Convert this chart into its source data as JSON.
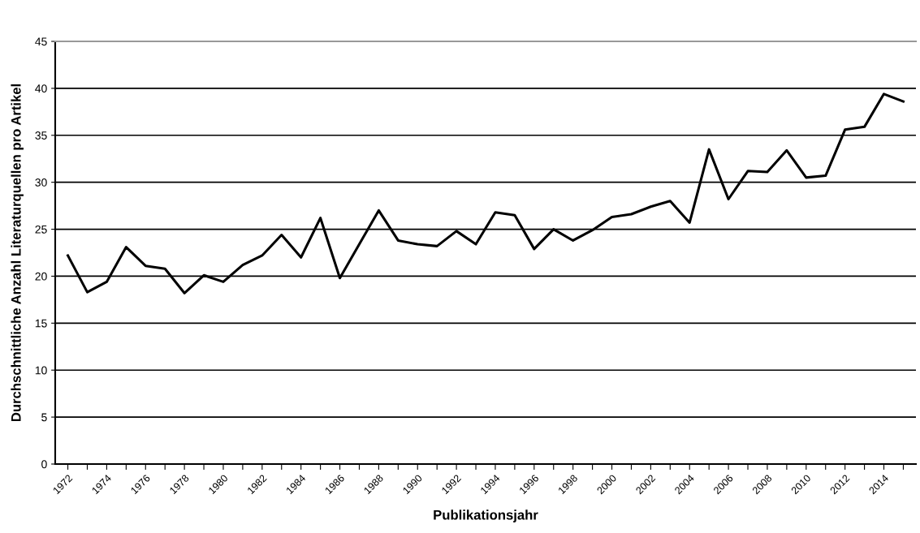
{
  "chart_data": {
    "type": "line",
    "xlabel": "Publikationsjahr",
    "ylabel": "Durchschnittliche Anzahl Literaturquellen pro Artikel",
    "categories": [
      "1972",
      null,
      "1974",
      null,
      "1976",
      null,
      "1978",
      null,
      "1980",
      null,
      "1982",
      null,
      "1984",
      null,
      "1986",
      null,
      "1988",
      null,
      "1990",
      null,
      "1992",
      null,
      "1994",
      null,
      "1996",
      null,
      "1998",
      null,
      "2000",
      null,
      "2002",
      null,
      "2004",
      null,
      "2006",
      null,
      "2008",
      null,
      "2010",
      null,
      "2012",
      null,
      "2014",
      null
    ],
    "series": [
      {
        "color": "#000000",
        "values": [
          22.2,
          18.3,
          19.4,
          23.1,
          21.1,
          20.8,
          18.2,
          20.1,
          19.4,
          21.2,
          22.2,
          24.4,
          22.0,
          26.2,
          19.8,
          23.4,
          27.0,
          23.8,
          23.4,
          23.2,
          24.8,
          23.4,
          26.8,
          26.5,
          22.9,
          25.0,
          23.8,
          24.9,
          26.3,
          26.6,
          27.4,
          28.0,
          25.7,
          33.5,
          28.2,
          31.2,
          31.1,
          33.4,
          30.5,
          30.7,
          35.6,
          35.9,
          39.4,
          38.6
        ]
      }
    ],
    "ylim": [
      0,
      45
    ],
    "yticks": [
      0,
      5,
      10,
      15,
      20,
      25,
      30,
      35,
      40,
      45
    ],
    "grid": "y",
    "legend": false,
    "marker": "none",
    "line_style": "solid"
  }
}
